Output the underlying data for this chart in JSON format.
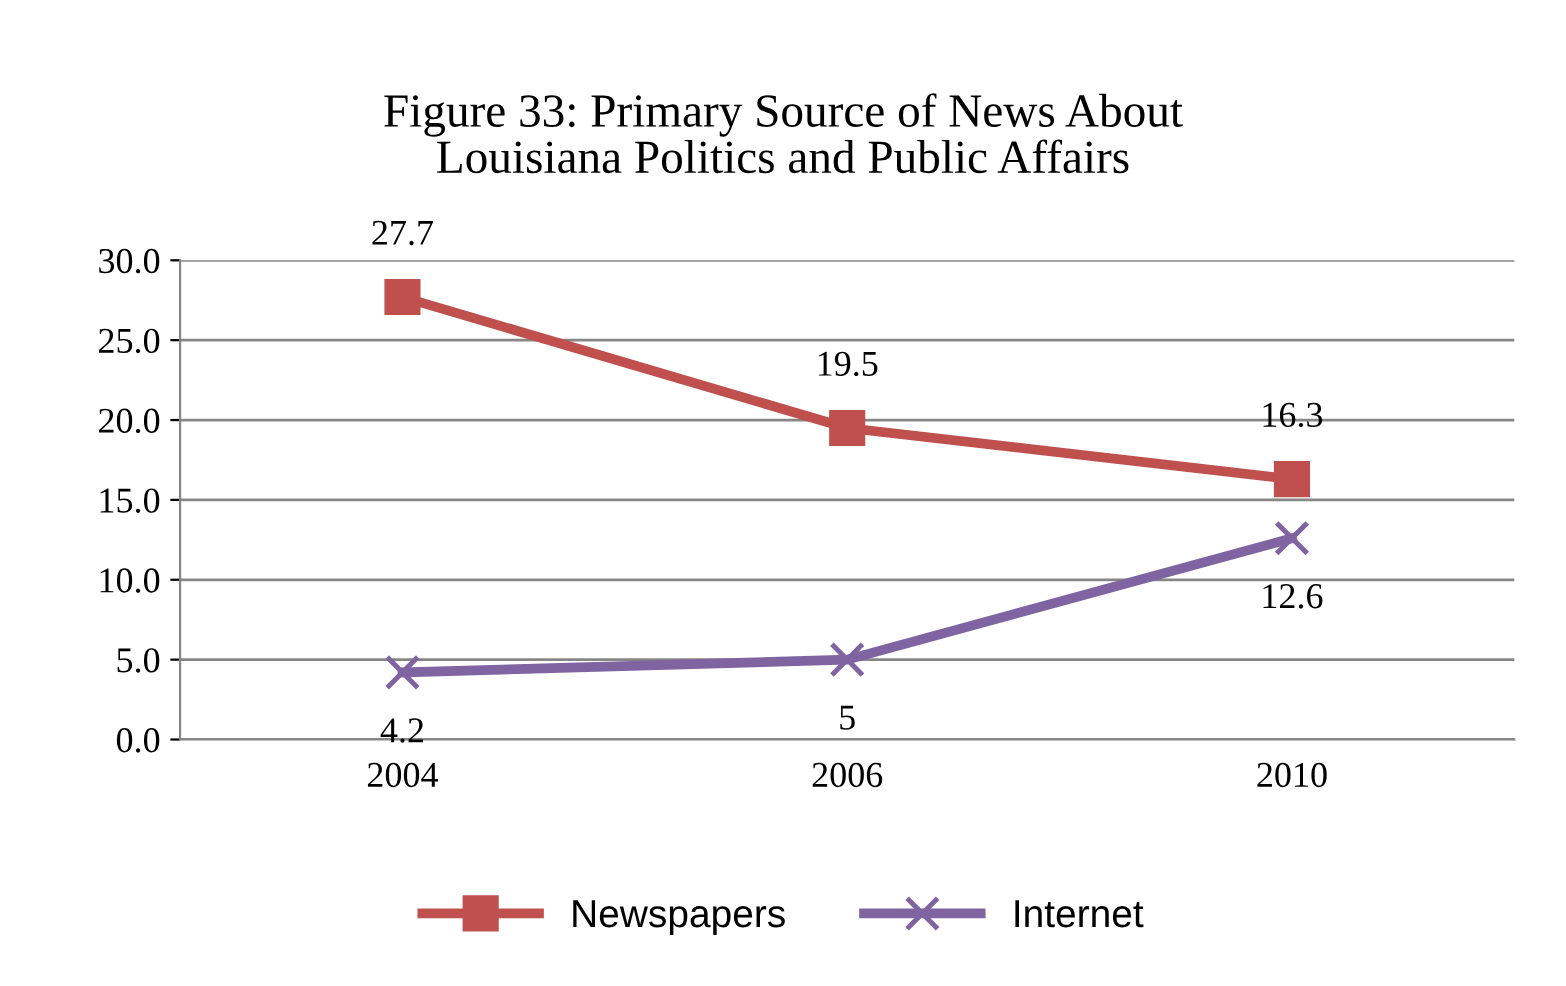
{
  "chart_data": {
    "type": "line",
    "title": "Figure 33: Primary Source of News About\nLouisiana Politics and Public Affairs",
    "categories": [
      "2004",
      "2006",
      "2010"
    ],
    "series": [
      {
        "name": "Newspapers",
        "color": "#c0504d",
        "values": [
          27.7,
          19.5,
          16.3
        ],
        "marker": "square"
      },
      {
        "name": "Internet",
        "color": "#8064a2",
        "values": [
          4.2,
          5,
          12.6
        ],
        "marker": "cross"
      }
    ],
    "ylim": [
      0,
      30
    ],
    "yticks": [
      {
        "value": 0,
        "label": "0.0"
      },
      {
        "value": 5,
        "label": "5.0"
      },
      {
        "value": 10,
        "label": "10.0"
      },
      {
        "value": 15,
        "label": "15.0"
      },
      {
        "value": 20,
        "label": "20.0"
      },
      {
        "value": 25,
        "label": "25.0"
      },
      {
        "value": 30,
        "label": "30.0"
      }
    ],
    "grid": "y",
    "legend": "bottom",
    "data_labels": true,
    "line_style": "solid"
  }
}
